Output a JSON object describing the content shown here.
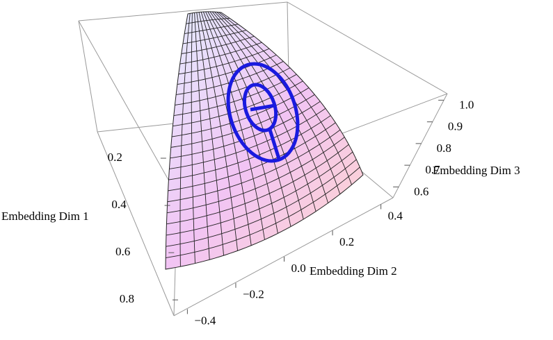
{
  "chart_data": {
    "type": "surface3d",
    "axes": [
      {
        "label": "Embedding Dim 1",
        "lim": [
          0.1,
          0.87
        ],
        "ticks": [
          0.2,
          0.4,
          0.6,
          0.8
        ]
      },
      {
        "label": "Embedding Dim 2",
        "lim": [
          -0.45,
          0.45
        ],
        "ticks": [
          {
            "value": -0.4,
            "label": "−0.4"
          },
          {
            "value": -0.2,
            "label": "−0.2"
          },
          {
            "value": 0,
            "label": "0.0"
          },
          0.2,
          0.4
        ]
      },
      {
        "label": "Embedding Dim 3",
        "lim": [
          0.55,
          1.03
        ],
        "ticks": [
          0.6,
          0.7,
          0.8,
          0.9,
          {
            "value": 1,
            "label": "1.0"
          }
        ]
      }
    ]
  }
}
